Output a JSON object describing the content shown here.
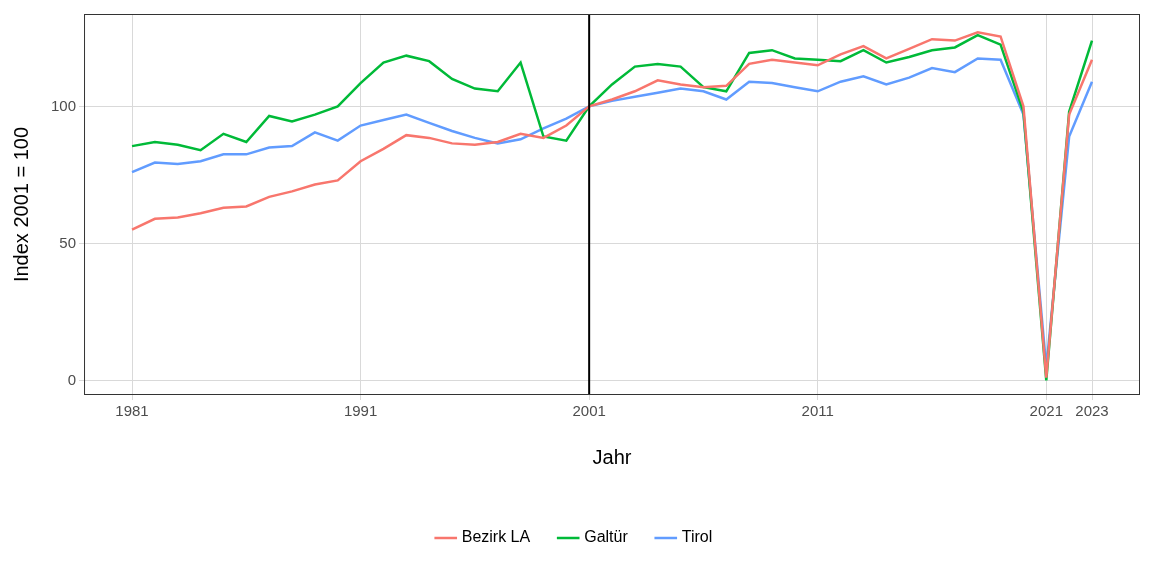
{
  "chart_data": {
    "type": "line",
    "x_label": "Jahr",
    "y_label": "Index 2001 = 100",
    "x": [
      1981,
      1982,
      1983,
      1984,
      1985,
      1986,
      1987,
      1988,
      1989,
      1990,
      1991,
      1992,
      1993,
      1994,
      1995,
      1996,
      1997,
      1998,
      1999,
      2000,
      2001,
      2002,
      2003,
      2004,
      2005,
      2006,
      2007,
      2008,
      2009,
      2010,
      2011,
      2012,
      2013,
      2014,
      2015,
      2016,
      2017,
      2018,
      2019,
      2020,
      2021,
      2022,
      2023
    ],
    "series": [
      {
        "name": "Bezirk LA",
        "color": "#F8766D",
        "values": [
          55,
          59,
          59.5,
          61,
          63,
          63.5,
          67,
          69,
          71.5,
          73,
          80,
          84.5,
          89.5,
          88.5,
          86.5,
          86,
          87,
          90,
          88.5,
          93,
          100,
          102.5,
          105.5,
          109.5,
          108,
          107,
          107.5,
          115.5,
          117,
          116,
          115,
          119,
          122,
          117.5,
          121,
          124.5,
          124,
          127,
          125.5,
          100,
          1,
          97,
          117
        ]
      },
      {
        "name": "Galtür",
        "color": "#00BA38",
        "values": [
          85.5,
          87,
          86,
          84,
          90,
          87,
          96.5,
          94.5,
          97,
          100,
          108.5,
          116,
          118.5,
          116.5,
          110,
          106.5,
          105.5,
          116,
          89,
          87.5,
          100,
          108,
          114.5,
          115.5,
          114.5,
          107,
          105.5,
          119.5,
          120.5,
          117.5,
          117,
          116.5,
          120.5,
          116,
          118,
          120.5,
          121.5,
          126,
          122.5,
          98,
          0,
          98,
          124
        ]
      },
      {
        "name": "Tirol",
        "color": "#619CFF",
        "values": [
          76,
          79.5,
          79,
          80,
          82.5,
          82.5,
          85,
          85.5,
          90.5,
          87.5,
          93,
          95,
          97,
          94,
          91,
          88.5,
          86.5,
          88,
          92,
          95.5,
          100,
          102,
          103.5,
          105,
          106.5,
          105.5,
          102.5,
          109,
          108.5,
          107,
          105.5,
          109,
          111,
          108,
          110.5,
          114,
          112.5,
          117.5,
          117,
          97,
          5,
          89,
          109
        ]
      }
    ],
    "xlim": [
      1978.9,
      2025.1
    ],
    "xticks": [
      1981,
      1991,
      2001,
      2011,
      2021,
      2023
    ],
    "ylim": [
      -5.3,
      133.7
    ],
    "yticks": [
      0,
      50,
      100
    ],
    "vline": 2001,
    "grid": true,
    "legend": "bottom"
  }
}
